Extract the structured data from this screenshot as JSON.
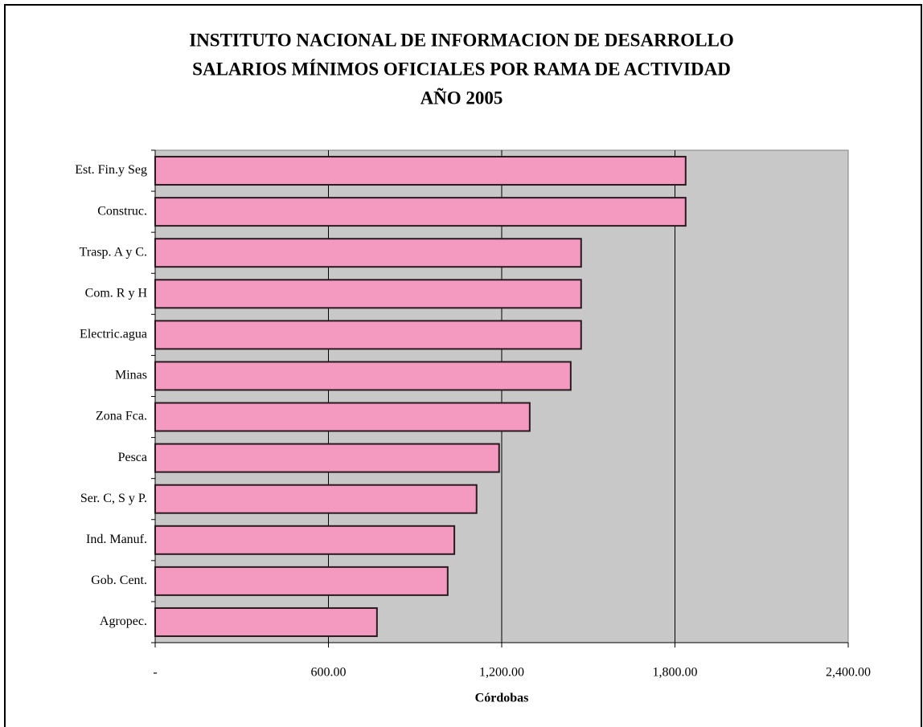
{
  "chart_data": {
    "type": "bar",
    "orientation": "horizontal",
    "title": [
      "INSTITUTO NACIONAL DE INFORMACION DE DESARROLLO",
      "SALARIOS MÍNIMOS OFICIALES POR RAMA DE ACTIVIDAD",
      "AÑO 2005"
    ],
    "categories": [
      "Est. Fin.y Seg",
      "Construc.",
      "Trasp. A y C.",
      "Com. R y H",
      "Electric.agua",
      "Minas",
      "Zona Fca.",
      "Pesca",
      "Ser. C, S y P.",
      "Ind. Manuf.",
      "Gob. Cent.",
      "Agropec."
    ],
    "values": [
      1837,
      1837,
      1475,
      1475,
      1475,
      1439,
      1297,
      1191,
      1113,
      1036,
      1013,
      768
    ],
    "color": "#f49ac1",
    "xlabel": "Córdobas",
    "xlim": [
      0,
      2400
    ],
    "xticks": [
      {
        "value": 0,
        "label": "-"
      },
      {
        "value": 600,
        "label": "600.00"
      },
      {
        "value": 1200,
        "label": "1,200.00"
      },
      {
        "value": 1800,
        "label": "1,800.00"
      },
      {
        "value": 2400,
        "label": "2,400.00"
      }
    ],
    "grid": true
  }
}
